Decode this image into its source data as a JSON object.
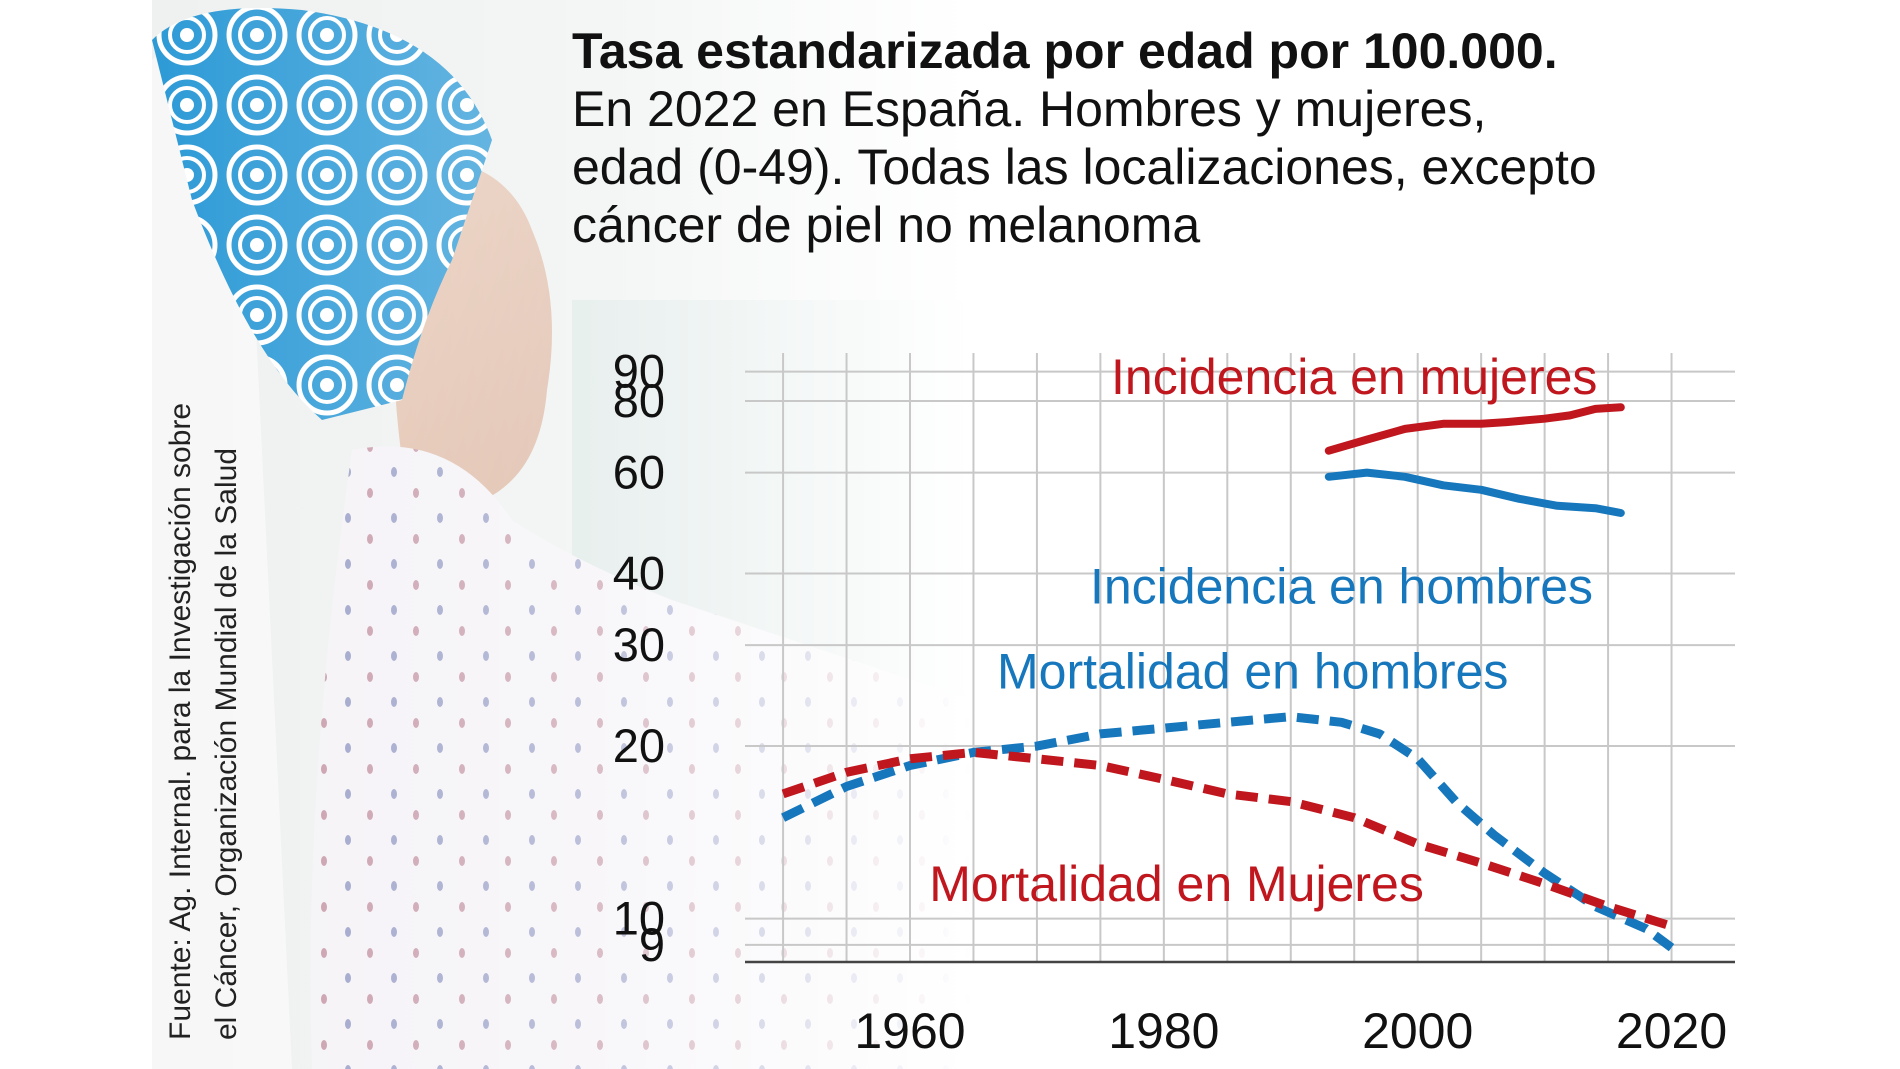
{
  "title": "Tasa estandarizada por edad por 100.000.",
  "subtitle": "En 2022 en España. Hombres y mujeres,\nedad (0-49). Todas las localizaciones, excepto\ncáncer de piel no melanoma",
  "source": "Fuente: Ag. Internal. para la Investigación sobre\nel Cáncer, Organización Mundial de la Salud",
  "colors": {
    "red": "#c0171e",
    "blue": "#1677bd",
    "grid": "#c8c8c8"
  },
  "chart_data": {
    "type": "line",
    "title": "Tasa estandarizada por edad por 100.000.",
    "xlabel": "",
    "ylabel": "",
    "x_scale": "linear",
    "y_scale": "log",
    "xlim": [
      1947,
      2025
    ],
    "ylim": [
      8.4,
      97
    ],
    "x_ticks": [
      1960,
      1980,
      2000,
      2020
    ],
    "y_ticks": [
      9,
      10,
      20,
      30,
      40,
      60,
      80,
      90
    ],
    "grid": true,
    "legend": "labels placed directly next to each line",
    "series": [
      {
        "name": "Incidencia en mujeres",
        "style": "solid",
        "color": "#c0171e",
        "label_year": 1995,
        "label_value": 88,
        "points": [
          [
            1993,
            65.5
          ],
          [
            1996,
            68.5
          ],
          [
            1999,
            71.5
          ],
          [
            2002,
            73
          ],
          [
            2005,
            73
          ],
          [
            2007,
            73.5
          ],
          [
            2010,
            74.5
          ],
          [
            2012,
            75.5
          ],
          [
            2014,
            77.5
          ],
          [
            2016,
            78
          ]
        ]
      },
      {
        "name": "Incidencia en hombres",
        "style": "solid",
        "color": "#1677bd",
        "label_year": 1994,
        "label_value": 38,
        "points": [
          [
            1993,
            59
          ],
          [
            1996,
            60
          ],
          [
            1999,
            59
          ],
          [
            2002,
            57
          ],
          [
            2005,
            56
          ],
          [
            2008,
            54
          ],
          [
            2011,
            52.5
          ],
          [
            2014,
            52
          ],
          [
            2016,
            51
          ]
        ]
      },
      {
        "name": "Mortalidad en hombres",
        "style": "dashed",
        "color": "#1677bd",
        "label_year": 1987,
        "label_value": 27,
        "points": [
          [
            1950,
            15
          ],
          [
            1955,
            17
          ],
          [
            1960,
            18.5
          ],
          [
            1965,
            19.5
          ],
          [
            1970,
            20
          ],
          [
            1975,
            21
          ],
          [
            1980,
            21.5
          ],
          [
            1985,
            22
          ],
          [
            1990,
            22.5
          ],
          [
            1994,
            22
          ],
          [
            1997,
            21
          ],
          [
            2000,
            19
          ],
          [
            2003,
            16
          ],
          [
            2006,
            14
          ],
          [
            2010,
            12
          ],
          [
            2014,
            10.5
          ],
          [
            2018,
            9.6
          ],
          [
            2020,
            8.9
          ]
        ]
      },
      {
        "name": "Mortalidad en Mujeres",
        "style": "dashed",
        "color": "#c0171e",
        "label_year": 1981,
        "label_value": 11.5,
        "points": [
          [
            1950,
            16.5
          ],
          [
            1955,
            18
          ],
          [
            1960,
            19
          ],
          [
            1965,
            19.5
          ],
          [
            1970,
            19
          ],
          [
            1975,
            18.5
          ],
          [
            1980,
            17.5
          ],
          [
            1985,
            16.5
          ],
          [
            1990,
            16
          ],
          [
            1995,
            15
          ],
          [
            2000,
            13.5
          ],
          [
            2005,
            12.5
          ],
          [
            2010,
            11.5
          ],
          [
            2015,
            10.5
          ],
          [
            2020,
            9.7
          ]
        ]
      }
    ]
  }
}
